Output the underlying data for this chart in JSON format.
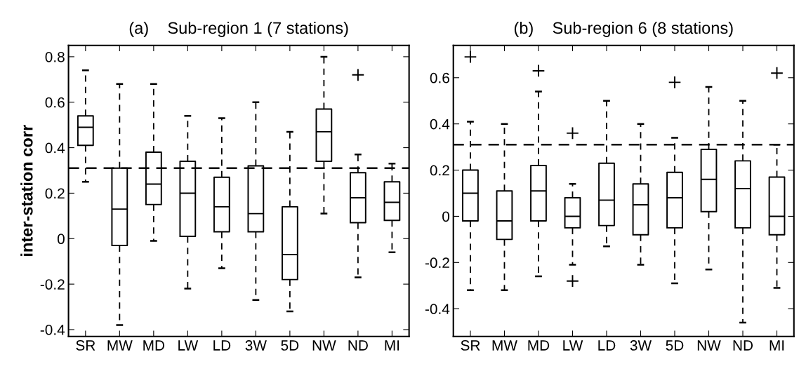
{
  "chart_data": [
    {
      "type": "box",
      "title": "(a)    Sub-region 1 (7 stations)",
      "ylabel": "inter-station corr",
      "categories": [
        "SR",
        "MW",
        "MD",
        "LW",
        "LD",
        "3W",
        "5D",
        "NW",
        "ND",
        "MI"
      ],
      "ylim": [
        -0.43,
        0.85
      ],
      "yticks": [
        -0.4,
        -0.2,
        0,
        0.2,
        0.4,
        0.6,
        0.8
      ],
      "grid": false,
      "legend": false,
      "ref_lines": [
        {
          "axis": "y",
          "value": 0.31,
          "color": "#000000",
          "line_style": "dashed"
        }
      ],
      "boxes": [
        {
          "low": 0.25,
          "q1": 0.41,
          "median": 0.49,
          "q3": 0.54,
          "high": 0.74
        },
        {
          "low": -0.38,
          "q1": -0.03,
          "median": 0.13,
          "q3": 0.31,
          "high": 0.68
        },
        {
          "low": -0.01,
          "q1": 0.15,
          "median": 0.24,
          "q3": 0.38,
          "high": 0.68
        },
        {
          "low": -0.22,
          "q1": 0.01,
          "median": 0.2,
          "q3": 0.34,
          "high": 0.54
        },
        {
          "low": -0.13,
          "q1": 0.03,
          "median": 0.14,
          "q3": 0.27,
          "high": 0.53
        },
        {
          "low": -0.27,
          "q1": 0.03,
          "median": 0.11,
          "q3": 0.32,
          "high": 0.6
        },
        {
          "low": -0.32,
          "q1": -0.18,
          "median": -0.07,
          "q3": 0.14,
          "high": 0.47
        },
        {
          "low": 0.11,
          "q1": 0.34,
          "median": 0.47,
          "q3": 0.57,
          "high": 0.8
        },
        {
          "low": -0.17,
          "q1": 0.07,
          "median": 0.18,
          "q3": 0.29,
          "high": 0.37,
          "outliers": [
            0.72
          ]
        },
        {
          "low": -0.06,
          "q1": 0.08,
          "median": 0.16,
          "q3": 0.25,
          "high": 0.33
        }
      ]
    },
    {
      "type": "box",
      "title": "(b)    Sub-region 6 (8 stations)",
      "categories": [
        "SR",
        "MW",
        "MD",
        "LW",
        "LD",
        "3W",
        "5D",
        "NW",
        "ND",
        "MI"
      ],
      "ylim": [
        -0.52,
        0.74
      ],
      "yticks": [
        -0.4,
        -0.2,
        0,
        0.2,
        0.4,
        0.6
      ],
      "grid": false,
      "legend": false,
      "ref_lines": [
        {
          "axis": "y",
          "value": 0.31,
          "color": "#000000",
          "line_style": "dashed"
        }
      ],
      "boxes": [
        {
          "low": -0.32,
          "q1": -0.02,
          "median": 0.1,
          "q3": 0.2,
          "high": 0.41,
          "outliers": [
            0.69
          ]
        },
        {
          "low": -0.32,
          "q1": -0.1,
          "median": -0.02,
          "q3": 0.11,
          "high": 0.4
        },
        {
          "low": -0.26,
          "q1": -0.02,
          "median": 0.11,
          "q3": 0.22,
          "high": 0.54,
          "outliers": [
            0.63
          ]
        },
        {
          "low": -0.21,
          "q1": -0.05,
          "median": 0.0,
          "q3": 0.08,
          "high": 0.14,
          "outliers": [
            0.36,
            -0.28
          ]
        },
        {
          "low": -0.13,
          "q1": -0.04,
          "median": 0.07,
          "q3": 0.23,
          "high": 0.5
        },
        {
          "low": -0.21,
          "q1": -0.08,
          "median": 0.05,
          "q3": 0.14,
          "high": 0.4
        },
        {
          "low": -0.29,
          "q1": -0.05,
          "median": 0.08,
          "q3": 0.19,
          "high": 0.34,
          "outliers": [
            0.58
          ]
        },
        {
          "low": -0.23,
          "q1": 0.02,
          "median": 0.16,
          "q3": 0.29,
          "high": 0.56
        },
        {
          "low": -0.46,
          "q1": -0.05,
          "median": 0.12,
          "q3": 0.24,
          "high": 0.5
        },
        {
          "low": -0.31,
          "q1": -0.08,
          "median": 0.0,
          "q3": 0.17,
          "high": 0.31,
          "outliers": [
            0.62
          ]
        }
      ]
    }
  ]
}
